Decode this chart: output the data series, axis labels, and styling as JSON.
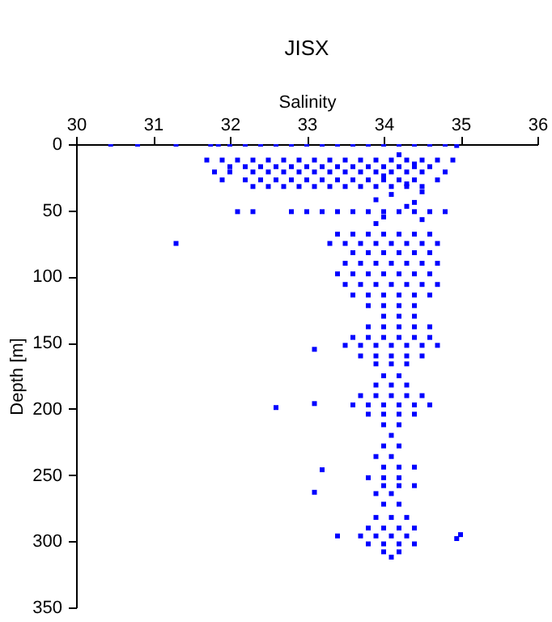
{
  "chart_data": {
    "type": "scatter",
    "title": "JISX",
    "xlabel": "Salinity",
    "ylabel": "Depth [m]",
    "xlim": [
      30,
      36
    ],
    "xticks": [
      30,
      31,
      32,
      33,
      34,
      35,
      36
    ],
    "ylim": [
      350,
      0
    ],
    "yticks": [
      0,
      50,
      100,
      150,
      200,
      250,
      300,
      350
    ],
    "grid": false,
    "marker": "square",
    "series": [
      {
        "color": "#0000ff",
        "x": [
          30.45,
          30.8,
          31.3,
          31.75,
          31.85,
          32.0,
          32.2,
          32.4,
          32.6,
          32.8,
          33.0,
          33.2,
          33.4,
          33.6,
          33.8,
          34.0,
          34.2,
          34.4,
          34.6,
          34.8,
          34.95,
          31.7,
          31.9,
          32.1,
          32.3,
          32.5,
          32.7,
          32.9,
          33.1,
          33.3,
          33.5,
          33.7,
          33.9,
          34.1,
          34.3,
          34.5,
          34.7,
          34.9,
          32.0,
          32.2,
          32.4,
          32.6,
          32.8,
          33.0,
          33.2,
          33.4,
          33.6,
          33.8,
          34.0,
          34.2,
          34.4,
          34.6,
          31.8,
          32.0,
          32.3,
          32.5,
          32.7,
          32.9,
          33.1,
          33.3,
          33.5,
          33.7,
          33.9,
          34.1,
          34.3,
          34.5,
          34.8,
          31.9,
          32.2,
          32.4,
          32.6,
          32.8,
          33.0,
          33.2,
          33.4,
          33.6,
          33.8,
          34.0,
          34.2,
          34.4,
          34.7,
          32.3,
          32.5,
          32.7,
          32.9,
          33.1,
          33.3,
          33.5,
          33.7,
          33.9,
          34.1,
          34.3,
          34.5,
          34.2,
          34.4,
          34.0,
          34.3,
          34.5,
          34.1,
          33.9,
          34.4,
          32.1,
          32.3,
          32.8,
          33.0,
          33.2,
          33.4,
          33.6,
          33.8,
          34.0,
          34.2,
          34.4,
          34.6,
          34.8,
          34.3,
          34.0,
          34.5,
          33.9,
          33.4,
          33.6,
          33.8,
          34.0,
          34.2,
          34.4,
          34.6,
          31.3,
          33.3,
          33.5,
          33.7,
          33.9,
          34.1,
          34.3,
          34.5,
          34.7,
          33.6,
          33.8,
          34.0,
          34.2,
          34.4,
          34.6,
          33.5,
          33.7,
          33.9,
          34.1,
          34.3,
          34.5,
          34.7,
          33.4,
          33.6,
          33.8,
          34.0,
          34.2,
          34.4,
          34.6,
          33.5,
          33.7,
          33.9,
          34.1,
          34.3,
          34.5,
          34.7,
          33.6,
          33.8,
          34.0,
          34.2,
          34.4,
          34.6,
          33.8,
          34.0,
          34.2,
          34.4,
          34.0,
          34.2,
          34.4,
          33.8,
          34.0,
          34.2,
          34.4,
          34.6,
          33.6,
          33.8,
          34.0,
          34.2,
          34.4,
          34.6,
          33.5,
          33.7,
          33.9,
          34.1,
          34.3,
          34.5,
          34.7,
          33.1,
          33.7,
          33.9,
          34.1,
          34.3,
          34.5,
          33.9,
          34.1,
          34.3,
          34.0,
          34.2,
          33.9,
          34.1,
          34.3,
          33.7,
          33.9,
          34.1,
          34.3,
          34.5,
          33.6,
          33.8,
          34.0,
          34.2,
          34.4,
          34.6,
          32.6,
          33.1,
          33.8,
          34.0,
          34.2,
          34.4,
          34.0,
          34.2,
          34.1,
          34.0,
          34.2,
          33.9,
          34.1,
          34.0,
          34.2,
          34.4,
          33.2,
          33.8,
          34.0,
          34.2,
          34.0,
          34.2,
          34.4,
          33.9,
          34.1,
          33.1,
          34.0,
          34.2,
          33.9,
          34.1,
          34.3,
          33.8,
          34.0,
          34.2,
          34.4,
          33.7,
          33.9,
          34.1,
          34.3,
          33.4,
          35.0,
          34.95,
          33.8,
          34.0,
          34.2,
          34.4,
          34.0,
          34.2,
          34.1
        ],
        "values": [
          0,
          0,
          0,
          0,
          0,
          0,
          0,
          0,
          0,
          0,
          0,
          0,
          0,
          0,
          0,
          0,
          0,
          0,
          0,
          0,
          1,
          12,
          12,
          12,
          12,
          12,
          12,
          12,
          12,
          12,
          12,
          12,
          12,
          12,
          12,
          12,
          12,
          12,
          17,
          17,
          17,
          17,
          17,
          17,
          17,
          17,
          17,
          17,
          17,
          17,
          17,
          17,
          21,
          21,
          21,
          21,
          21,
          21,
          21,
          21,
          21,
          21,
          21,
          21,
          21,
          21,
          21,
          27,
          27,
          27,
          27,
          27,
          27,
          27,
          27,
          27,
          27,
          27,
          27,
          27,
          27,
          32,
          32,
          32,
          32,
          32,
          32,
          32,
          32,
          32,
          32,
          32,
          32,
          8,
          15,
          24,
          30,
          36,
          38,
          42,
          44,
          51,
          51,
          51,
          51,
          51,
          51,
          51,
          51,
          51,
          51,
          51,
          51,
          51,
          47,
          55,
          57,
          60,
          68,
          68,
          68,
          68,
          68,
          68,
          68,
          75,
          75,
          75,
          75,
          75,
          75,
          75,
          75,
          75,
          82,
          82,
          82,
          82,
          82,
          82,
          90,
          90,
          90,
          90,
          90,
          90,
          90,
          98,
          98,
          98,
          98,
          98,
          98,
          98,
          106,
          106,
          106,
          106,
          106,
          106,
          106,
          114,
          114,
          114,
          114,
          114,
          114,
          122,
          122,
          122,
          122,
          130,
          130,
          130,
          138,
          138,
          138,
          138,
          138,
          146,
          146,
          146,
          146,
          146,
          146,
          152,
          152,
          152,
          152,
          152,
          152,
          152,
          155,
          160,
          160,
          160,
          160,
          160,
          166,
          166,
          166,
          175,
          175,
          182,
          182,
          182,
          190,
          190,
          190,
          190,
          190,
          197,
          197,
          197,
          197,
          197,
          197,
          199,
          196,
          204,
          204,
          204,
          204,
          212,
          212,
          220,
          228,
          228,
          236,
          236,
          244,
          244,
          244,
          246,
          252,
          252,
          252,
          258,
          258,
          258,
          264,
          264,
          263,
          272,
          272,
          282,
          282,
          282,
          290,
          290,
          290,
          290,
          296,
          296,
          296,
          296,
          296,
          295,
          298,
          302,
          302,
          302,
          302,
          308,
          308,
          312
        ]
      }
    ]
  }
}
